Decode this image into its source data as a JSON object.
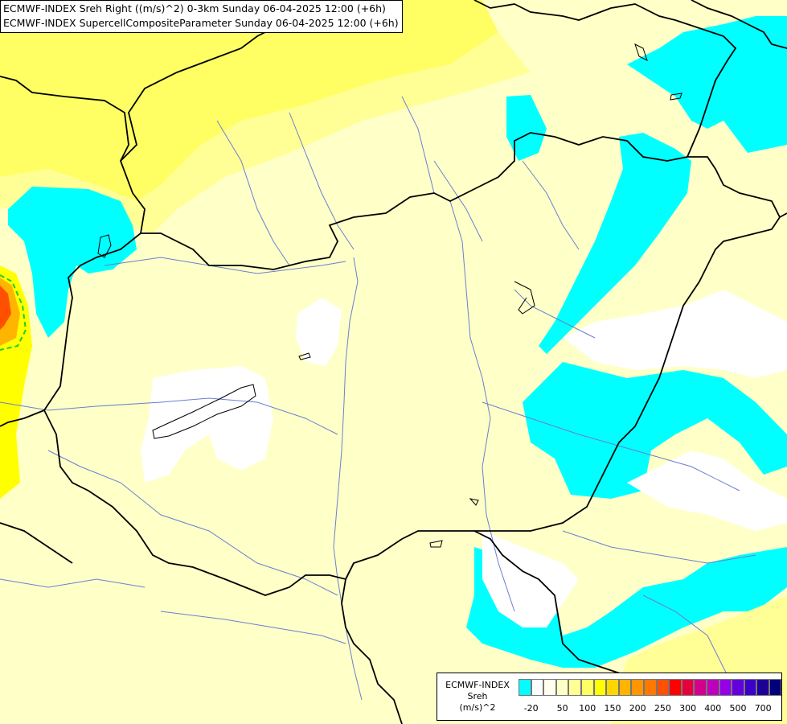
{
  "title_lines": [
    "ECMWF-INDEX Sreh Right ((m/s)^2) 0-3km Sunday 06-04-2025 12:00 (+6h)",
    "ECMWF-INDEX SupercellCompositeParameter Sunday 06-04-2025 12:00 (+6h)"
  ],
  "legend": {
    "title_line1": "ECMWF-INDEX",
    "title_line2": "Sreh",
    "title_line3": "(m/s)^2",
    "colors": [
      "#00ffff",
      "#ffffff",
      "#fffff0",
      "#ffffc8",
      "#ffff96",
      "#ffff64",
      "#ffff00",
      "#ffd700",
      "#ffb400",
      "#ff9600",
      "#ff7800",
      "#ff5000",
      "#ff0000",
      "#e6003c",
      "#d2008c",
      "#be00be",
      "#9600e6",
      "#6400dc",
      "#3c00c8",
      "#1e0096",
      "#000078"
    ],
    "ticks": [
      {
        "label": "-20",
        "index": 0.5
      },
      {
        "label": "50",
        "index": 3
      },
      {
        "label": "100",
        "index": 5
      },
      {
        "label": "150",
        "index": 7
      },
      {
        "label": "200",
        "index": 9
      },
      {
        "label": "250",
        "index": 11
      },
      {
        "label": "300",
        "index": 13
      },
      {
        "label": "400",
        "index": 15
      },
      {
        "label": "500",
        "index": 17
      },
      {
        "label": "700",
        "index": 19
      }
    ]
  }
}
